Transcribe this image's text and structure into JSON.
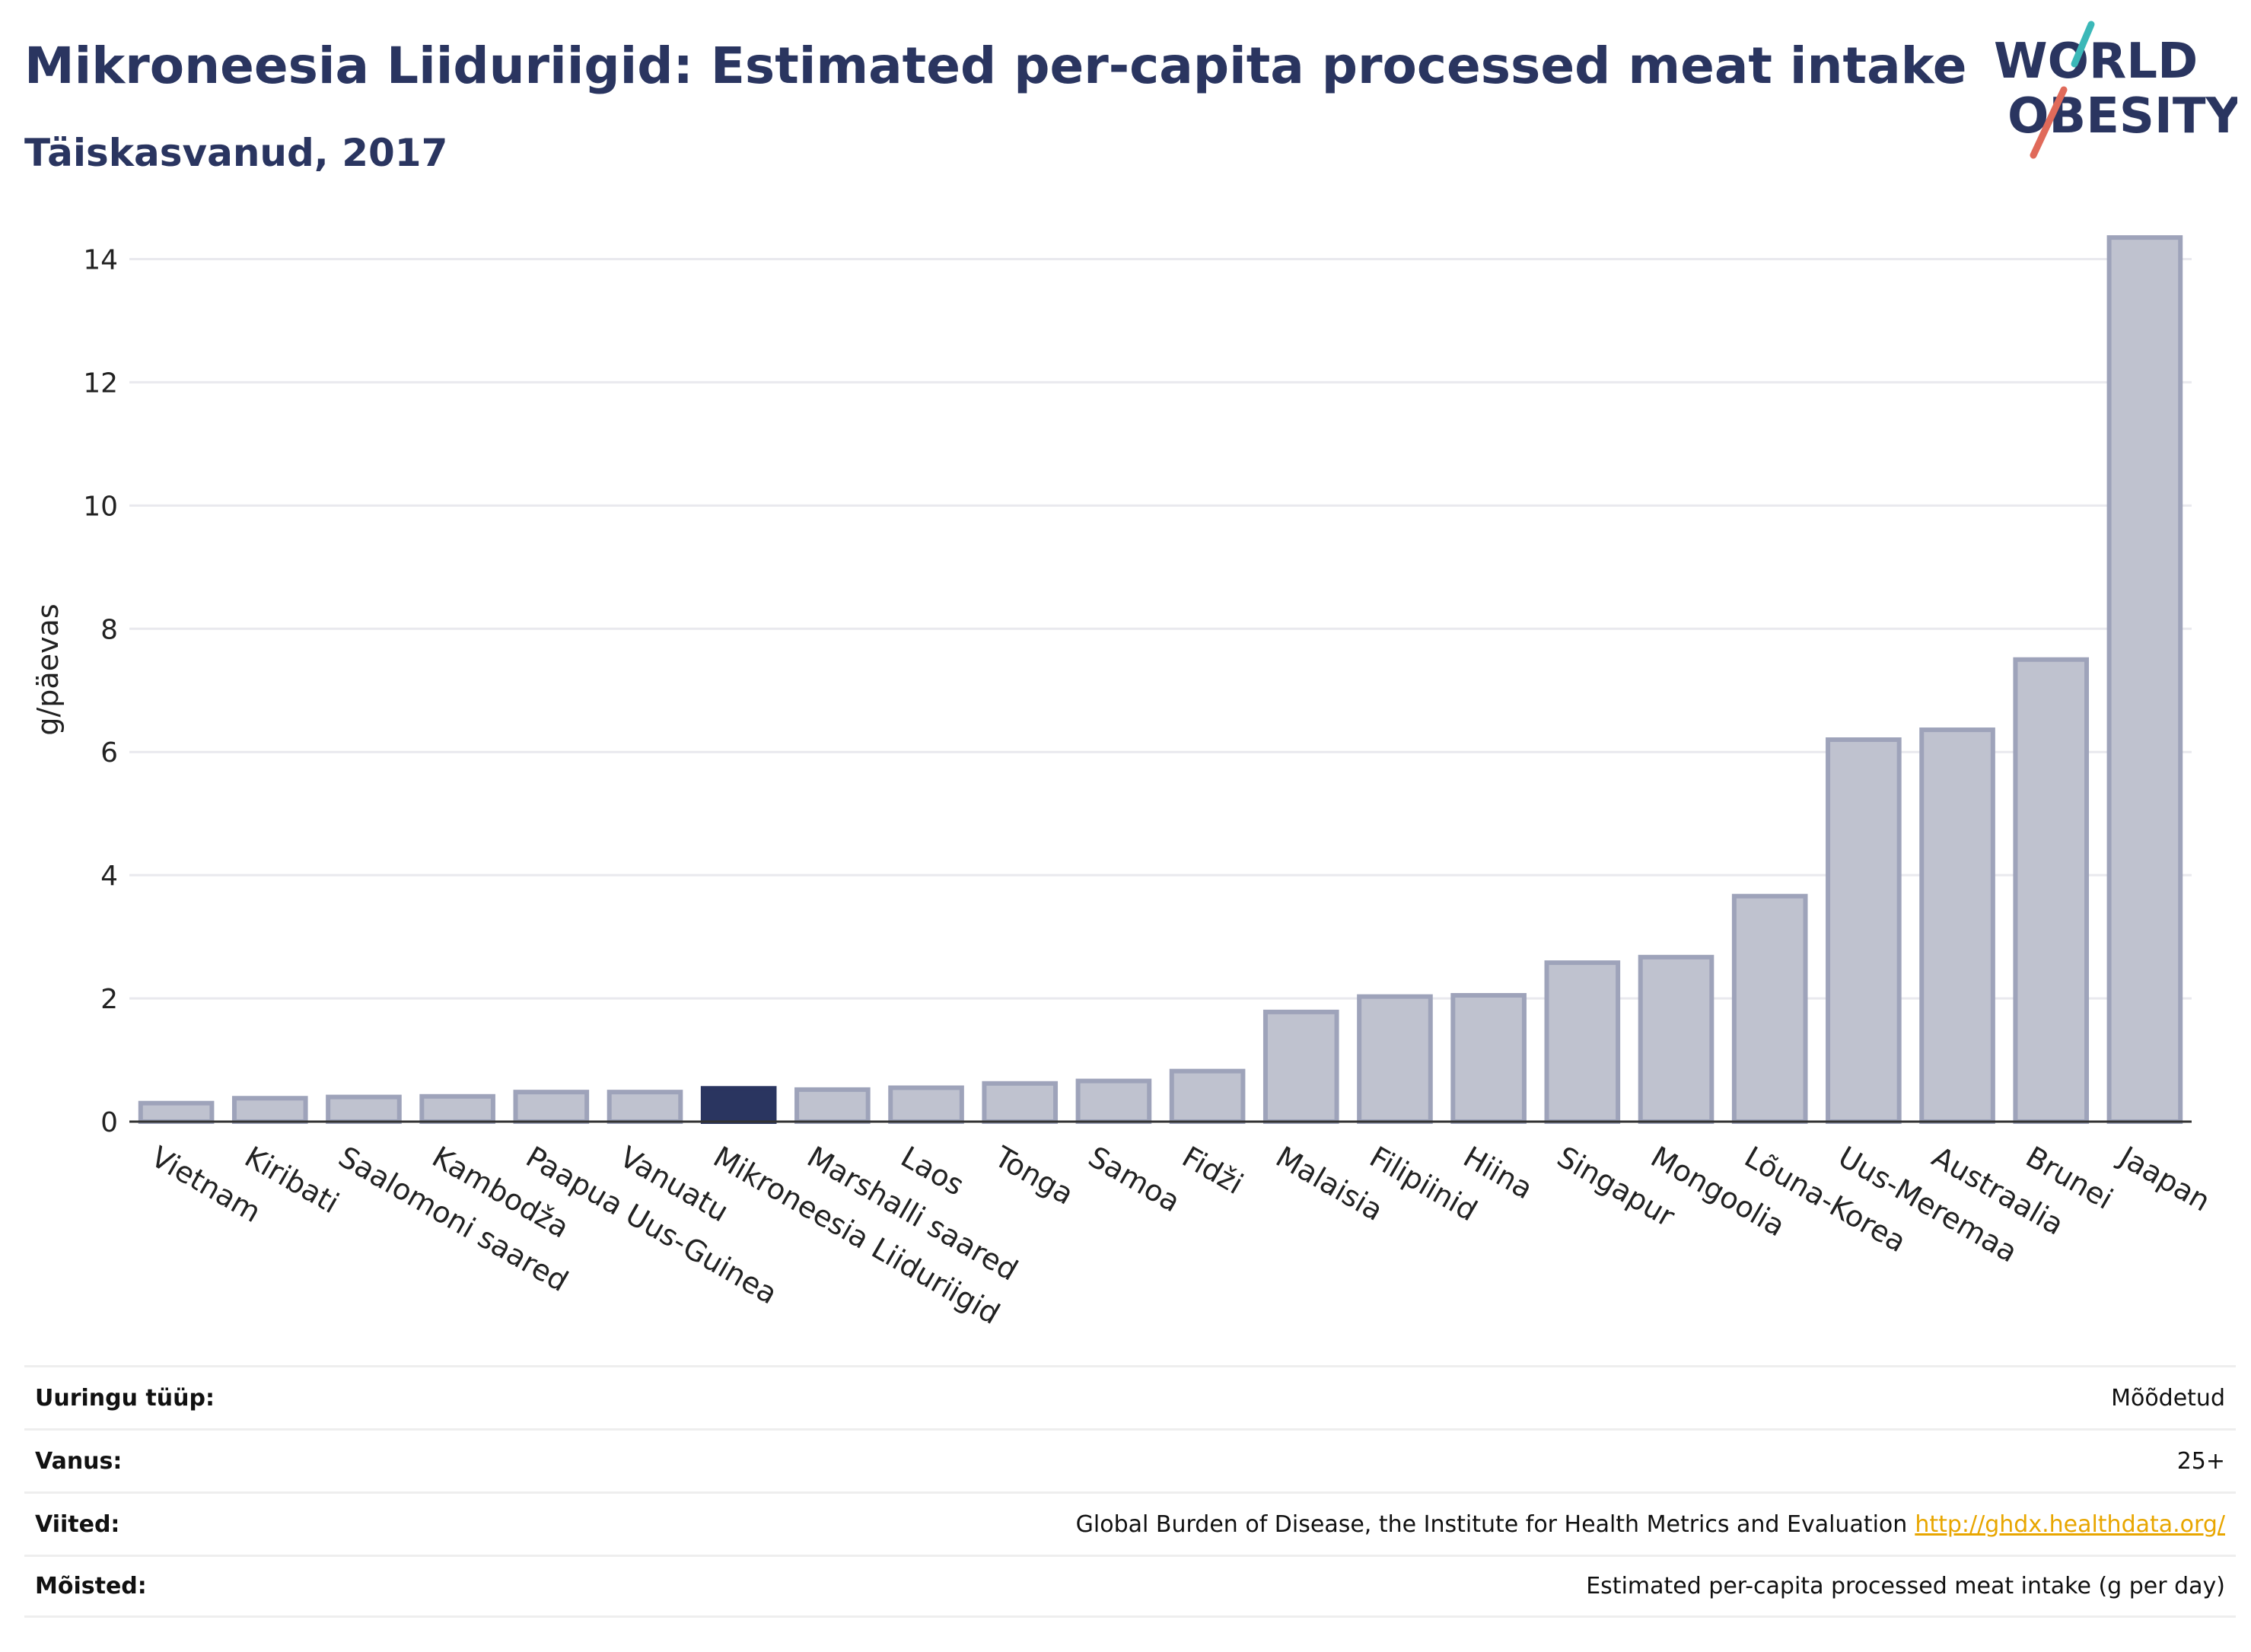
{
  "header": {
    "title": "Mikroneesia Liiduriigid: Estimated per-capita processed meat intake",
    "subtitle": "Täiskasvanud, 2017"
  },
  "logo": {
    "line1": "WORLD",
    "line2": "OBESITY"
  },
  "colors": {
    "highlight": "#2a3560",
    "bar": "#bfc2cf",
    "bar_border": "#9ea3ba",
    "title": "#2a3560",
    "link": "#e8a600"
  },
  "chart_data": {
    "type": "bar",
    "title": "Mikroneesia Liiduriigid: Estimated per-capita processed meat intake",
    "subtitle": "Täiskasvanud, 2017",
    "xlabel": "",
    "ylabel": "g/päevas",
    "ylim": [
      0,
      14.5
    ],
    "yticks": [
      0,
      2,
      4,
      6,
      8,
      10,
      12,
      14
    ],
    "grid": true,
    "legend": "none",
    "highlight": "Mikroneesia Liiduriigid",
    "categories": [
      "Vietnam",
      "Kiribati",
      "Saalomoni saared",
      "Kambodža",
      "Paapua Uus-Guinea",
      "Vanuatu",
      "Mikroneesia Liiduriigid",
      "Marshalli saared",
      "Laos",
      "Tonga",
      "Samoa",
      "Fidži",
      "Malaisia",
      "Filipiinid",
      "Hiina",
      "Singapur",
      "Mongoolia",
      "Lõuna-Korea",
      "Uus-Meremaa",
      "Austraalia",
      "Brunei",
      "Jaapan"
    ],
    "values": [
      0.3,
      0.38,
      0.4,
      0.41,
      0.48,
      0.48,
      0.54,
      0.52,
      0.55,
      0.62,
      0.66,
      0.82,
      1.78,
      2.03,
      2.05,
      2.58,
      2.67,
      3.66,
      6.2,
      6.36,
      7.5,
      14.35
    ]
  },
  "info": [
    {
      "label": "Uuringu tüüp:",
      "value": "Mõõdetud"
    },
    {
      "label": "Vanus:",
      "value": "25+"
    },
    {
      "label": "Viited:",
      "value": "Global Burden of Disease, the Institute for Health Metrics and Evaluation",
      "link": "http://ghdx.healthdata.org/"
    },
    {
      "label": "Mõisted:",
      "value": "Estimated per-capita processed meat intake (g per day)"
    }
  ]
}
